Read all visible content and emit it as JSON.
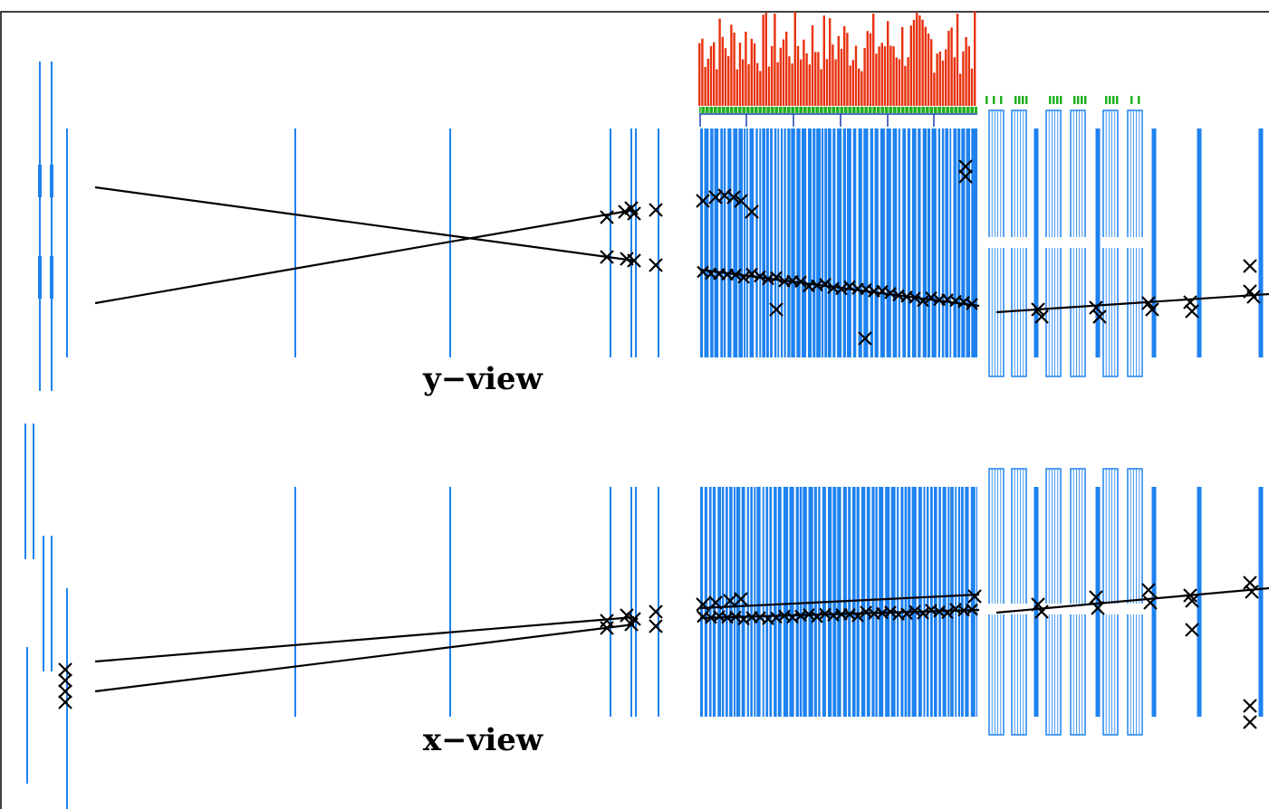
{
  "colors": {
    "detector": "#1e82f0",
    "histogram": "#e8320f",
    "hit_strip": "#20b020",
    "track": "#000000",
    "hit_marker": "#000000",
    "frame": "#000000",
    "background": "#ffffff"
  },
  "views": [
    {
      "id": "y",
      "label": "y−view"
    },
    {
      "id": "x",
      "label": "x−view"
    }
  ],
  "legend_icons": [
    "hit-cross-icon"
  ]
}
